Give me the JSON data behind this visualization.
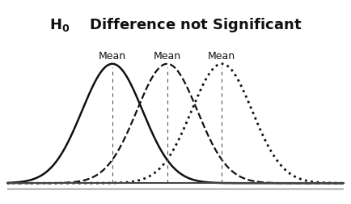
{
  "mean_label": "Mean",
  "means": [
    -1.3,
    0.0,
    1.3
  ],
  "sigma": 0.72,
  "curve_styles": [
    {
      "linestyle": "solid",
      "linewidth": 1.8,
      "color": "#111111",
      "dashes": []
    },
    {
      "linestyle": "dashed",
      "linewidth": 1.6,
      "color": "#111111",
      "dashes": [
        6,
        4
      ]
    },
    {
      "linestyle": "dotted",
      "linewidth": 2.0,
      "color": "#111111",
      "dashes": [
        2,
        3
      ]
    }
  ],
  "vline_color": "#555555",
  "vline_lw": 0.8,
  "xlim": [
    -3.8,
    4.2
  ],
  "ylim": [
    -0.04,
    0.68
  ],
  "bg_color": "#ffffff",
  "title_fontsize": 13,
  "mean_fontsize": 9,
  "bottom_line_y": -0.025,
  "bottom_line2_y": -0.038
}
